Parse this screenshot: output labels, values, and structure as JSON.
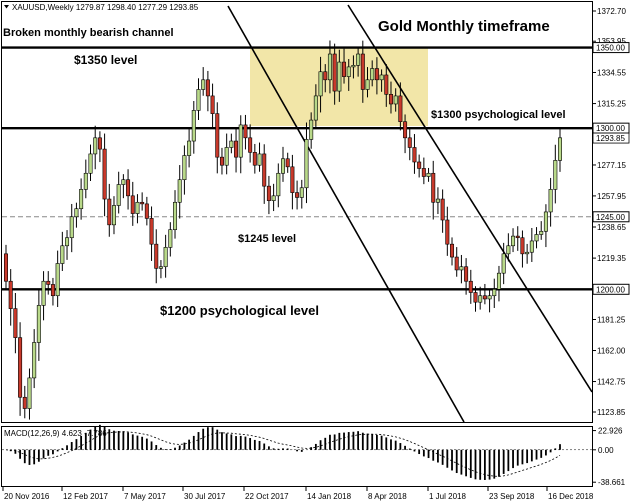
{
  "window": {
    "symbol_info": "XAUUSD,Weekly  1279.87 1298.40 1277.29 1293.85",
    "macd_info": "MACD(12,26,9) 4.623 -7.786"
  },
  "annotations": {
    "title": "Gold Monthly timeframe",
    "channel": "Broken monthly bearish channel",
    "lvl1350": "$1350 level",
    "lvl1300": "$1300 psychological level",
    "lvl1245": "$1245 level",
    "lvl1200": "$1200 psychological level"
  },
  "chart_data": {
    "type": "candlestick",
    "x_labels": [
      "20 Nov 2016",
      "12 Feb 2017",
      "7 May 2017",
      "30 Jul 2017",
      "22 Oct 2017",
      "14 Jan 2018",
      "8 Apr 2018",
      "1 Jul 2018",
      "23 Sep 2018",
      "16 Dec 2018"
    ],
    "y_ticks": [
      "1372.70",
      "1353.95",
      "1334.55",
      "1315.25",
      "1296.15",
      "1277.15",
      "1257.95",
      "1238.65",
      "1219.35",
      "1200.05",
      "1181.25",
      "1162.00",
      "1142.75",
      "1123.85"
    ],
    "y_tick_values": [
      1372.7,
      1353.95,
      1334.55,
      1315.25,
      1296.15,
      1277.15,
      1257.95,
      1238.65,
      1219.35,
      1200.05,
      1181.25,
      1162.0,
      1142.75,
      1123.85
    ],
    "ylim": [
      1120,
      1378
    ],
    "level_labels": [
      {
        "value": 1350.0,
        "text": "1350.00",
        "style": "solid"
      },
      {
        "value": 1300.0,
        "text": "1300.00",
        "style": "solid"
      },
      {
        "value": 1293.85,
        "text": "1293.85",
        "style": "current"
      },
      {
        "value": 1245.0,
        "text": "1245.00",
        "style": "dashed"
      },
      {
        "value": 1200.0,
        "text": "1200.00",
        "style": "solid"
      }
    ],
    "closes": [
      1205,
      1188,
      1170,
      1133,
      1126,
      1145,
      1167,
      1190,
      1205,
      1203,
      1196,
      1216,
      1227,
      1232,
      1245,
      1250,
      1262,
      1272,
      1284,
      1294,
      1287,
      1256,
      1240,
      1252,
      1265,
      1268,
      1258,
      1247,
      1254,
      1253,
      1244,
      1228,
      1213,
      1214,
      1226,
      1237,
      1254,
      1268,
      1283,
      1292,
      1311,
      1324,
      1330,
      1320,
      1309,
      1282,
      1277,
      1288,
      1292,
      1282,
      1302,
      1294,
      1285,
      1277,
      1284,
      1264,
      1255,
      1258,
      1272,
      1281,
      1276,
      1260,
      1257,
      1263,
      1293,
      1305,
      1320,
      1335,
      1330,
      1346,
      1323,
      1341,
      1332,
      1338,
      1339,
      1346,
      1324,
      1330,
      1337,
      1330,
      1333,
      1321,
      1315,
      1320,
      1304,
      1294,
      1288,
      1279,
      1275,
      1270,
      1272,
      1254,
      1256,
      1243,
      1228,
      1220,
      1212,
      1214,
      1205,
      1198,
      1192,
      1196,
      1194,
      1196,
      1200,
      1210,
      1222,
      1227,
      1233,
      1232,
      1222,
      1223,
      1230,
      1234,
      1236,
      1248,
      1262,
      1280,
      1294
    ],
    "macd": {
      "levels": [
        "22.926",
        "0.00",
        "-38.661"
      ],
      "level_values": [
        22.926,
        0.0,
        -38.661
      ],
      "hist_ylim": [
        -42,
        26
      ]
    }
  }
}
